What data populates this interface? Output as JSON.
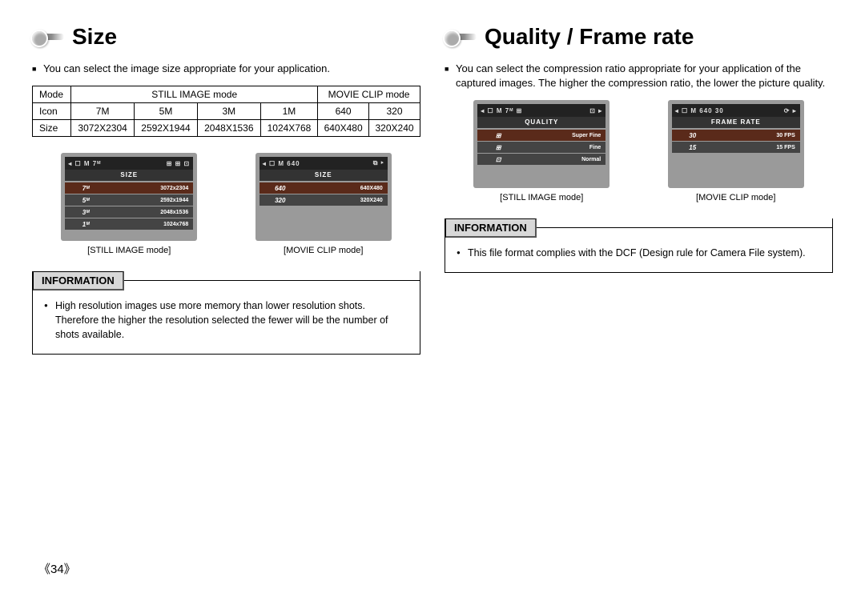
{
  "page_number": "《34》",
  "left": {
    "title": "Size",
    "intro": "You can select the image size appropriate for your application.",
    "table": {
      "row1_label": "Mode",
      "row1_cell1": "STILL IMAGE mode",
      "row1_cell2": "MOVIE CLIP mode",
      "row2_label": "Icon",
      "row2_vals": [
        "7M",
        "5M",
        "3M",
        "1M",
        "640",
        "320"
      ],
      "row3_label": "Size",
      "row3_vals": [
        "3072X2304",
        "2592X1944",
        "2048X1536",
        "1024X768",
        "640X480",
        "320X240"
      ]
    },
    "screen1": {
      "topbar_left": "◂ ☐ M 7ᴹ",
      "topbar_right": "⊞ ⊞ ⊡",
      "titlebar": "SIZE",
      "rows": [
        {
          "l": "7ᴹ",
          "r": "3072x2304",
          "hl": true
        },
        {
          "l": "5ᴹ",
          "r": "2592x1944",
          "hl": false
        },
        {
          "l": "3ᴹ",
          "r": "2048x1536",
          "hl": false
        },
        {
          "l": "1ᴹ",
          "r": "1024x768",
          "hl": false
        }
      ],
      "caption": "[STILL IMAGE mode]"
    },
    "screen2": {
      "topbar_left": "◂ ☐ M 640",
      "topbar_right": "⧉ ▸",
      "titlebar": "SIZE",
      "rows": [
        {
          "l": "640",
          "r": "640X480",
          "hl": true
        },
        {
          "l": "320",
          "r": "320X240",
          "hl": false
        }
      ],
      "caption": "[MOVIE CLIP mode]"
    },
    "info_title": "INFORMATION",
    "info_text": "High resolution images use more memory than lower resolution shots. Therefore the higher the resolution selected the fewer will be the number of shots available."
  },
  "right": {
    "title": "Quality / Frame rate",
    "intro": "You can select the compression ratio appropriate for your application of the captured images. The higher the compression ratio, the lower the picture quality.",
    "screen1": {
      "topbar_left": "◂ ☐ M 7ᴹ ⊞",
      "topbar_right": "⊡ ▸",
      "titlebar": "QUALITY",
      "rows": [
        {
          "l": "⊞",
          "r": "Super Fine",
          "hl": true
        },
        {
          "l": "⊞",
          "r": "Fine",
          "hl": false
        },
        {
          "l": "⊡",
          "r": "Normal",
          "hl": false
        }
      ],
      "caption": "[STILL IMAGE mode]"
    },
    "screen2": {
      "topbar_left": "◂ ☐ M 640 30",
      "topbar_right": "⟳ ▸",
      "titlebar": "FRAME RATE",
      "rows": [
        {
          "l": "30",
          "r": "30 FPS",
          "hl": true
        },
        {
          "l": "15",
          "r": "15 FPS",
          "hl": false
        }
      ],
      "caption": "[MOVIE CLIP mode]"
    },
    "info_title": "INFORMATION",
    "info_text": "This file format complies with the DCF (Design rule for Camera File system)."
  }
}
